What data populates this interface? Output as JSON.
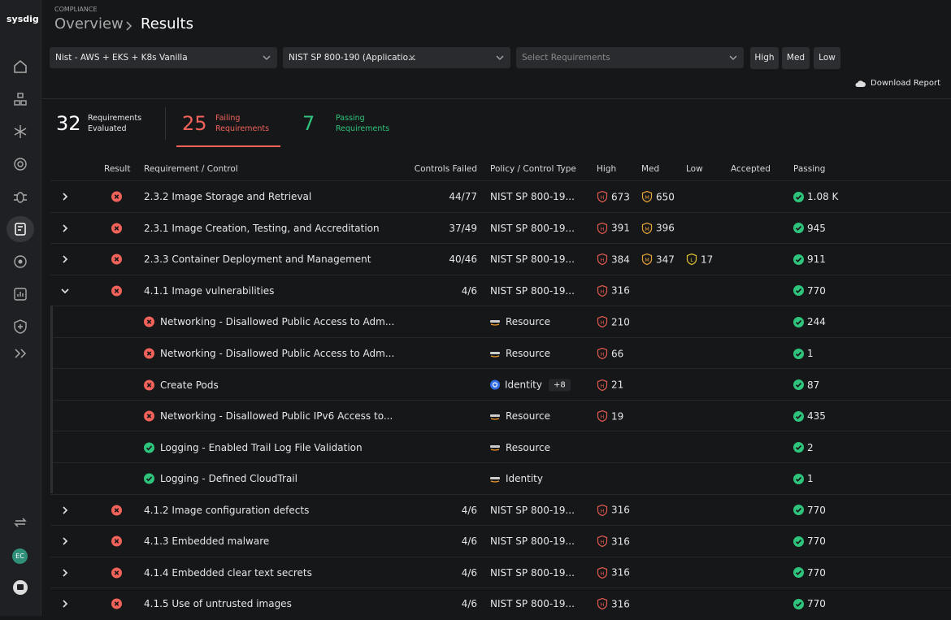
{
  "sidebar": {
    "logo": "sysdig",
    "avatar": "EC"
  },
  "header": {
    "eyebrow": "COMPLIANCE",
    "parent": "Overview",
    "current": "Results"
  },
  "filters": {
    "policy_set": "Nist - AWS + EKS + K8s Vanilla",
    "policy": "NIST SP 800-190 (Applicatio...",
    "requirements_placeholder": "Select Requirements",
    "severity": [
      "High",
      "Med",
      "Low"
    ]
  },
  "download": "Download Report",
  "summary": [
    {
      "count": 32,
      "label": "Requirements Evaluated",
      "tone": "neutral"
    },
    {
      "count": 25,
      "label": "Failing Requirements",
      "tone": "fail"
    },
    {
      "count": 7,
      "label": "Passing Requirements",
      "tone": "pass"
    }
  ],
  "severity_icons": {
    "high": "H",
    "med": "M",
    "low": "L"
  },
  "table": {
    "columns": {
      "result": "Result",
      "requirement": "Requirement / Control",
      "controls_failed": "Controls Failed",
      "policy": "Policy / Control Type",
      "high": "High",
      "med": "Med",
      "low": "Low",
      "accepted": "Accepted",
      "passing": "Passing"
    },
    "rows": [
      {
        "result": "fail",
        "expanded": false,
        "requirement": "2.3.2 Image Storage and Retrieval",
        "controls_failed": "44/77",
        "policy": "NIST SP 800-19...",
        "high": 673,
        "med": 650,
        "passing": "1.08 K"
      },
      {
        "result": "fail",
        "expanded": false,
        "requirement": "2.3.1 Image Creation, Testing, and Accreditation",
        "controls_failed": "37/49",
        "policy": "NIST SP 800-19...",
        "high": 391,
        "med": 396,
        "passing": 945
      },
      {
        "result": "fail",
        "expanded": false,
        "requirement": "2.3.3 Container Deployment and Management",
        "controls_failed": "40/46",
        "policy": "NIST SP 800-19...",
        "high": 384,
        "med": 347,
        "low": 17,
        "passing": 911
      },
      {
        "result": "fail",
        "expanded": true,
        "requirement": "4.1.1 Image vulnerabilities",
        "controls_failed": "4/6",
        "policy": "NIST SP 800-19...",
        "high": 316,
        "passing": 770,
        "children": [
          {
            "result": "fail",
            "requirement": "Networking - Disallowed Public Access to Adm...",
            "provider": "aws",
            "policy": "Resource",
            "high": 210,
            "passing": 244
          },
          {
            "result": "fail",
            "requirement": "Networking - Disallowed Public Access to Adm...",
            "provider": "aws",
            "policy": "Resource",
            "high": 66,
            "passing": 1
          },
          {
            "result": "fail",
            "requirement": "Create Pods",
            "provider": "k8s",
            "policy": "Identity",
            "extra": "+8",
            "high": 21,
            "passing": 87
          },
          {
            "result": "fail",
            "requirement": "Networking - Disallowed Public IPv6 Access to...",
            "provider": "aws",
            "policy": "Resource",
            "high": 19,
            "passing": 435
          },
          {
            "result": "pass",
            "requirement": "Logging - Enabled Trail Log File Validation",
            "provider": "aws",
            "policy": "Resource",
            "passing": 2
          },
          {
            "result": "pass",
            "requirement": "Logging - Defined CloudTrail",
            "provider": "aws",
            "policy": "Identity",
            "passing": 1
          }
        ]
      },
      {
        "result": "fail",
        "expanded": false,
        "requirement": "4.1.2 Image configuration defects",
        "controls_failed": "4/6",
        "policy": "NIST SP 800-19...",
        "high": 316,
        "passing": 770
      },
      {
        "result": "fail",
        "expanded": false,
        "requirement": "4.1.3 Embedded malware",
        "controls_failed": "4/6",
        "policy": "NIST SP 800-19...",
        "high": 316,
        "passing": 770
      },
      {
        "result": "fail",
        "expanded": false,
        "requirement": "4.1.4 Embedded clear text secrets",
        "controls_failed": "4/6",
        "policy": "NIST SP 800-19...",
        "high": 316,
        "passing": 770
      },
      {
        "result": "fail",
        "expanded": false,
        "requirement": "4.1.5 Use of untrusted images",
        "controls_failed": "4/6",
        "policy": "NIST SP 800-19...",
        "high": 316,
        "passing": 770
      }
    ]
  }
}
